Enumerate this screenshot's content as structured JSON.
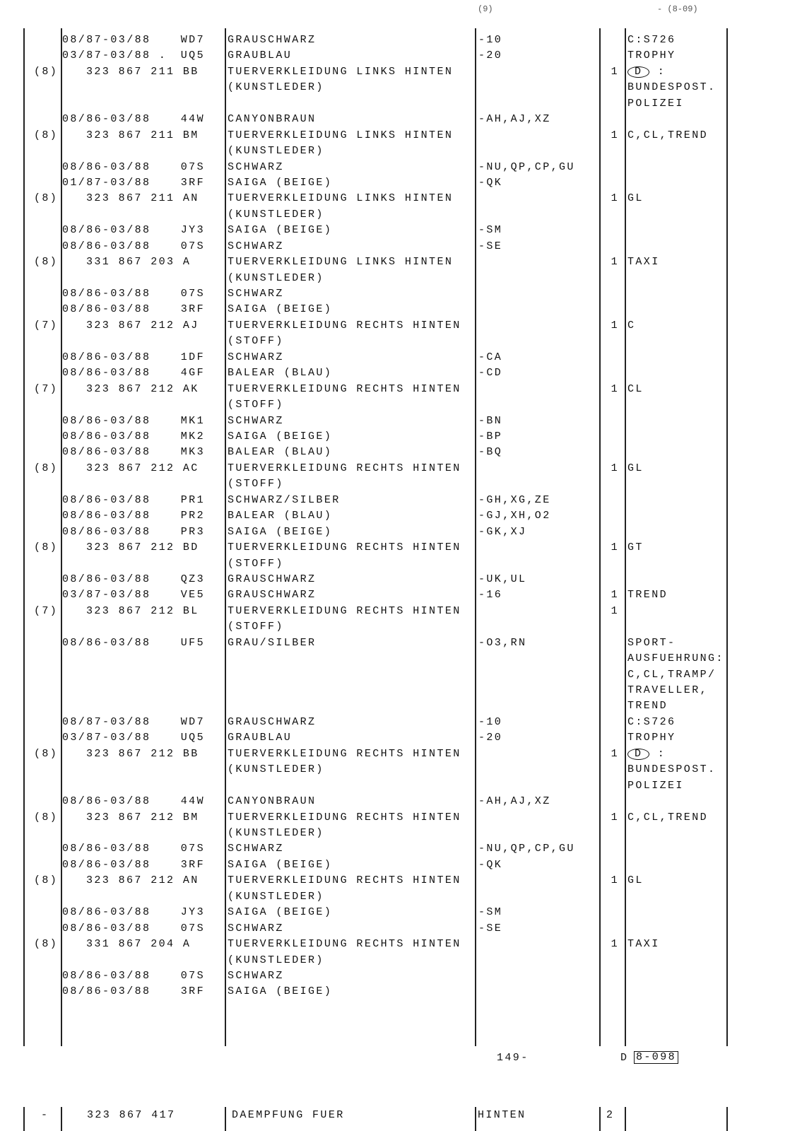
{
  "header_fragments": {
    "left": "(9)",
    "right": "- (8-09)"
  },
  "rows": [
    {
      "date": "08/87-03/88",
      "code": "WD7",
      "desc": "GRAUSCHWARZ",
      "rem": "-10",
      "note": "C:S726"
    },
    {
      "date": "03/87-03/88 .",
      "code": "UQ5",
      "desc": "GRAUBLAU",
      "rem": "-20",
      "note": "TROPHY"
    },
    {
      "ref": "(8)",
      "part": "323 867 211 BB",
      "desc": "TUERVERKLEIDUNG LINKS HINTEN",
      "qty": "1",
      "note_circle": "D",
      "note": " :"
    },
    {
      "desc": "(KUNSTLEDER)",
      "note": "BUNDESPOST."
    },
    {
      "note": "POLIZEI"
    },
    {
      "date": "08/86-03/88",
      "code": "44W",
      "desc": "CANYONBRAUN",
      "rem": "-AH,AJ,XZ"
    },
    {
      "ref": "(8)",
      "part": "323 867 211 BM",
      "desc": "TUERVERKLEIDUNG LINKS HINTEN",
      "qty": "1",
      "note": "C,CL,TREND"
    },
    {
      "desc": "(KUNSTLEDER)"
    },
    {
      "date": "08/86-03/88",
      "code": "07S",
      "desc": "SCHWARZ",
      "rem": "-NU,QP,CP,GU"
    },
    {
      "date": "01/87-03/88",
      "code": "3RF",
      "desc": "SAIGA (BEIGE)",
      "rem": "-QK"
    },
    {
      "ref": "(8)",
      "part": "323 867 211 AN",
      "desc": "TUERVERKLEIDUNG LINKS HINTEN",
      "qty": "1",
      "note": "GL"
    },
    {
      "desc": "(KUNSTLEDER)"
    },
    {
      "date": "08/86-03/88",
      "code": "JY3",
      "desc": "SAIGA (BEIGE)",
      "rem": "-SM"
    },
    {
      "date": "08/86-03/88",
      "code": "07S",
      "desc": "SCHWARZ",
      "rem": "-SE"
    },
    {
      "ref": "(8)",
      "part": "331 867 203 A",
      "desc": "TUERVERKLEIDUNG LINKS HINTEN",
      "qty": "1",
      "note": "TAXI"
    },
    {
      "desc": "(KUNSTLEDER)"
    },
    {
      "date": "08/86-03/88",
      "code": "07S",
      "desc": "SCHWARZ"
    },
    {
      "date": "08/86-03/88",
      "code": "3RF",
      "desc": "SAIGA (BEIGE)"
    },
    {
      "ref": "(7)",
      "part": "323 867 212 AJ",
      "desc": "TUERVERKLEIDUNG RECHTS HINTEN",
      "qty": "1",
      "note": "C"
    },
    {
      "desc": "(STOFF)"
    },
    {
      "date": "08/86-03/88",
      "code": "1DF",
      "desc": "SCHWARZ",
      "rem": "-CA"
    },
    {
      "date": "08/86-03/88",
      "code": "4GF",
      "desc": "BALEAR (BLAU)",
      "rem": "-CD"
    },
    {
      "ref": "(7)",
      "part": "323 867 212 AK",
      "desc": "TUERVERKLEIDUNG RECHTS HINTEN",
      "qty": "1",
      "note": "CL"
    },
    {
      "desc": "(STOFF)"
    },
    {
      "date": "08/86-03/88",
      "code": "MK1",
      "desc": "SCHWARZ",
      "rem": "-BN"
    },
    {
      "date": "08/86-03/88",
      "code": "MK2",
      "desc": "SAIGA (BEIGE)",
      "rem": "-BP"
    },
    {
      "date": "08/86-03/88",
      "code": "MK3",
      "desc": "BALEAR (BLAU)",
      "rem": "-BQ"
    },
    {
      "ref": "(8)",
      "part": "323 867 212 AC",
      "desc": "TUERVERKLEIDUNG RECHTS HINTEN",
      "qty": "1",
      "note": "GL"
    },
    {
      "desc": "(STOFF)"
    },
    {
      "date": "08/86-03/88",
      "code": "PR1",
      "desc": "SCHWARZ/SILBER",
      "rem": "-GH,XG,ZE"
    },
    {
      "date": "08/86-03/88",
      "code": "PR2",
      "desc": "BALEAR (BLAU)",
      "rem": "-GJ,XH,O2"
    },
    {
      "date": "08/86-03/88",
      "code": "PR3",
      "desc": "SAIGA (BEIGE)",
      "rem": "-GK,XJ"
    },
    {
      "ref": "(8)",
      "part": "323 867 212 BD",
      "desc": "TUERVERKLEIDUNG RECHTS HINTEN",
      "qty": "1",
      "note": "GT"
    },
    {
      "desc": "(STOFF)"
    },
    {
      "date": "08/86-03/88",
      "code": "QZ3",
      "desc": "GRAUSCHWARZ",
      "rem": "-UK,UL"
    },
    {
      "date": "03/87-03/88",
      "code": "VE5",
      "desc": "GRAUSCHWARZ",
      "rem": "-16",
      "qty": "1",
      "note": "TREND"
    },
    {
      "ref": "(7)",
      "part": "323 867 212 BL",
      "desc": "TUERVERKLEIDUNG RECHTS HINTEN",
      "qty": "1"
    },
    {
      "desc": "(STOFF)"
    },
    {
      "date": "08/86-03/88",
      "code": "UF5",
      "desc": "GRAU/SILBER",
      "rem": "-O3,RN",
      "note": "SPORT-"
    },
    {
      "note": "AUSFUEHRUNG:"
    },
    {
      "note": "C,CL,TRAMP/"
    },
    {
      "note": "TRAVELLER,"
    },
    {
      "note": "TREND"
    },
    {
      "date": "08/87-03/88",
      "code": "WD7",
      "desc": "GRAUSCHWARZ",
      "rem": "-10",
      "note": "C:S726"
    },
    {
      "date": "03/87-03/88",
      "code": "UQ5",
      "desc": "GRAUBLAU",
      "rem": "-20",
      "note": "TROPHY"
    },
    {
      "ref": "(8)",
      "part": "323 867 212 BB",
      "desc": "TUERVERKLEIDUNG RECHTS HINTEN",
      "qty": "1",
      "note_circle": "D",
      "note": " :"
    },
    {
      "desc": "(KUNSTLEDER)",
      "note": "BUNDESPOST."
    },
    {
      "note": "POLIZEI"
    },
    {
      "date": "08/86-03/88",
      "code": "44W",
      "desc": "CANYONBRAUN",
      "rem": "-AH,AJ,XZ"
    },
    {
      "ref": "(8)",
      "part": "323 867 212 BM",
      "desc": "TUERVERKLEIDUNG RECHTS HINTEN",
      "qty": "1",
      "note": "C,CL,TREND"
    },
    {
      "desc": "(KUNSTLEDER)"
    },
    {
      "date": "08/86-03/88",
      "code": "07S",
      "desc": "SCHWARZ",
      "rem": "-NU,QP,CP,GU"
    },
    {
      "date": "08/86-03/88",
      "code": "3RF",
      "desc": "SAIGA (BEIGE)",
      "rem": "-QK"
    },
    {
      "ref": "(8)",
      "part": "323 867 212 AN",
      "desc": "TUERVERKLEIDUNG RECHTS HINTEN",
      "qty": "1",
      "note": "GL"
    },
    {
      "desc": "(KUNSTLEDER)"
    },
    {
      "date": "08/86-03/88",
      "code": "JY3",
      "desc": "SAIGA (BEIGE)",
      "rem": "-SM"
    },
    {
      "date": "08/86-03/88",
      "code": "07S",
      "desc": "SCHWARZ",
      "rem": "-SE"
    },
    {
      "ref": "(8)",
      "part": "331 867 204 A",
      "desc": "TUERVERKLEIDUNG RECHTS HINTEN",
      "qty": "1",
      "note": "TAXI"
    },
    {
      "desc": "(KUNSTLEDER)"
    },
    {
      "date": "08/86-03/88",
      "code": "07S",
      "desc": "SCHWARZ"
    },
    {
      "date": "08/86-03/88",
      "code": "3RF",
      "desc": "SAIGA (BEIGE)"
    }
  ],
  "footer": {
    "page_number": "149-",
    "region": "D",
    "page_code": "8-098"
  },
  "next_section": {
    "ref": "-",
    "part": "323 867 417",
    "desc": "DAEMPFUNG FUER",
    "rem": "HINTEN",
    "qty": "2"
  }
}
